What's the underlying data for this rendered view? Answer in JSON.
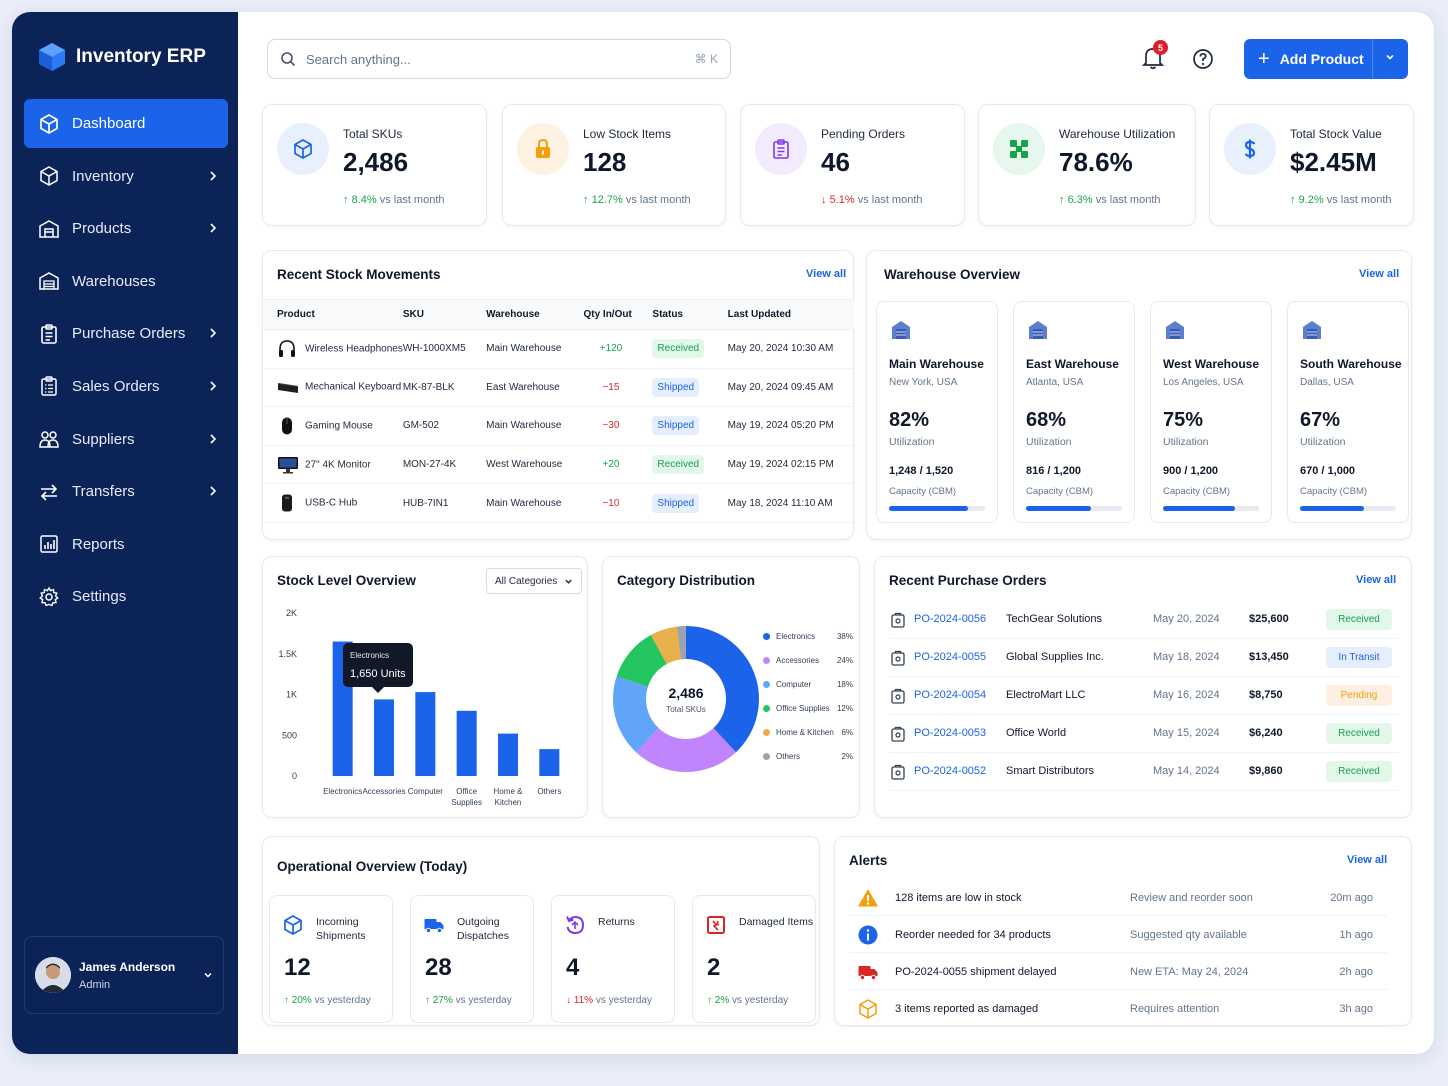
{
  "app": {
    "title": "Inventory ERP"
  },
  "sidebar": {
    "items": [
      {
        "label": "Dashboard",
        "icon": "cube-icon",
        "active": true,
        "chevron": false
      },
      {
        "label": "Inventory",
        "icon": "box-icon",
        "chevron": true
      },
      {
        "label": "Products",
        "icon": "store-icon",
        "chevron": true
      },
      {
        "label": "Warehouses",
        "icon": "warehouse-icon",
        "chevron": false
      },
      {
        "label": "Purchase Orders",
        "icon": "clipboard-icon",
        "chevron": true
      },
      {
        "label": "Sales Orders",
        "icon": "clipboard-list-icon",
        "chevron": true
      },
      {
        "label": "Suppliers",
        "icon": "users-icon",
        "chevron": true
      },
      {
        "label": "Transfers",
        "icon": "transfer-icon",
        "chevron": true
      },
      {
        "label": "Reports",
        "icon": "chart-icon",
        "chevron": false
      },
      {
        "label": "Settings",
        "icon": "gear-icon",
        "chevron": false
      }
    ],
    "user": {
      "name": "James Anderson",
      "role": "Admin"
    }
  },
  "header": {
    "search_placeholder": "Search anything...",
    "shortcut": "⌘  K",
    "notifications": "5",
    "add_label": "Add Product"
  },
  "stats": [
    {
      "label": "Total SKUs",
      "value": "2,486",
      "dir": "up",
      "change": "8.4%",
      "suffix": "vs last month",
      "icon": "cube-icon",
      "bg": "#e8f0fe",
      "color": "#1b63e8"
    },
    {
      "label": "Low Stock Items",
      "value": "128",
      "dir": "up",
      "change": "12.7%",
      "suffix": "vs last month",
      "icon": "lock-icon",
      "bg": "#fdf1e2",
      "color": "#f59e0b"
    },
    {
      "label": "Pending Orders",
      "value": "46",
      "dir": "down",
      "change": "5.1%",
      "suffix": "vs last month",
      "icon": "clipboard-icon",
      "bg": "#f1ebfd",
      "color": "#7c3aed"
    },
    {
      "label": "Warehouse Utilization",
      "value": "78.6%",
      "dir": "up",
      "change": "6.3%",
      "suffix": "vs last month",
      "icon": "grid-icon",
      "bg": "#e6f7ee",
      "color": "#16a34a"
    },
    {
      "label": "Total Stock Value",
      "value": "$2.45M",
      "dir": "up",
      "change": "9.2%",
      "suffix": "vs last month",
      "icon": "dollar-icon",
      "bg": "#e8f0fe",
      "color": "#1b63e8"
    }
  ],
  "movements": {
    "title": "Recent Stock Movements",
    "view_all": "View all",
    "columns": [
      "Product",
      "SKU",
      "Warehouse",
      "Qty In/Out",
      "Status",
      "Last Updated"
    ],
    "rows": [
      {
        "product": "Wireless Headphones",
        "sku": "WH-1000XM5",
        "warehouse": "Main Warehouse",
        "qty": "+120",
        "status": "Received",
        "updated": "May 20, 2024 10:30 AM",
        "icon": "headphones-icon"
      },
      {
        "product": "Mechanical Keyboard",
        "sku": "MK-87-BLK",
        "warehouse": "East Warehouse",
        "qty": "−15",
        "status": "Shipped",
        "updated": "May 20, 2024 09:45 AM",
        "icon": "keyboard-icon"
      },
      {
        "product": "Gaming Mouse",
        "sku": "GM-502",
        "warehouse": "Main Warehouse",
        "qty": "−30",
        "status": "Shipped",
        "updated": "May 19, 2024 05:20 PM",
        "icon": "mouse-icon"
      },
      {
        "product": "27\" 4K Monitor",
        "sku": "MON-27-4K",
        "warehouse": "West Warehouse",
        "qty": "+20",
        "status": "Received",
        "updated": "May 19, 2024 02:15 PM",
        "icon": "monitor-icon"
      },
      {
        "product": "USB-C Hub",
        "sku": "HUB-7IN1",
        "warehouse": "Main Warehouse",
        "qty": "−10",
        "status": "Shipped",
        "updated": "May 18, 2024 11:10 AM",
        "icon": "hub-icon"
      }
    ]
  },
  "warehouses": {
    "title": "Warehouse Overview",
    "view_all": "View all",
    "util_label": "Utilization",
    "cap_label": "Capacity (CBM)",
    "items": [
      {
        "name": "Main Warehouse",
        "location": "New York, USA",
        "pct": "82%",
        "fill": 0.82,
        "capacity": "1,248 / 1,520"
      },
      {
        "name": "East Warehouse",
        "location": "Atlanta, USA",
        "pct": "68%",
        "fill": 0.68,
        "capacity": "816 / 1,200"
      },
      {
        "name": "West Warehouse",
        "location": "Los Angeles, USA",
        "pct": "75%",
        "fill": 0.75,
        "capacity": "900 / 1,200"
      },
      {
        "name": "South Warehouse",
        "location": "Dallas, USA",
        "pct": "67%",
        "fill": 0.67,
        "capacity": "670 / 1,000"
      }
    ]
  },
  "stock_level": {
    "title": "Stock Level Overview",
    "filter": "All Categories",
    "tooltip_cat": "Electronics",
    "tooltip_val": "1,650 Units"
  },
  "category": {
    "title": "Category Distribution",
    "center_value": "2,486",
    "center_label": "Total SKUs"
  },
  "chart_data": [
    {
      "type": "bar",
      "title": "Stock Level Overview",
      "categories": [
        "Electronics",
        "Accessories",
        "Computer",
        "Office Supplies",
        "Home & Kitchen",
        "Others"
      ],
      "values": [
        1650,
        940,
        1030,
        800,
        520,
        330
      ],
      "ylim": [
        0,
        2000
      ],
      "yticks": [
        "0",
        "500",
        "1K",
        "1.5K",
        "2K"
      ],
      "color": "#1b63e8"
    },
    {
      "type": "pie",
      "title": "Category Distribution",
      "labels": [
        "Electronics",
        "Accessories",
        "Computer",
        "Office Supplies",
        "Home & Kitchen",
        "Others"
      ],
      "values": [
        38,
        24,
        18,
        12,
        6,
        2
      ],
      "display": [
        "38%",
        "24%",
        "18%",
        "12%",
        "6%",
        "2%"
      ],
      "colors": [
        "#1b63e8",
        "#c084fc",
        "#60a5fa",
        "#22c55e",
        "#e8b04a",
        "#9ca3af"
      ]
    }
  ],
  "purchase_orders": {
    "title": "Recent Purchase Orders",
    "view_all": "View all",
    "rows": [
      {
        "po": "PO-2024-0056",
        "supplier": "TechGear Solutions",
        "date": "May 20, 2024",
        "amount": "$25,600",
        "status": "Received",
        "kind": "rec"
      },
      {
        "po": "PO-2024-0055",
        "supplier": "Global Supplies Inc.",
        "date": "May 18, 2024",
        "amount": "$13,450",
        "status": "In Transit",
        "kind": "tr"
      },
      {
        "po": "PO-2024-0054",
        "supplier": "ElectroMart LLC",
        "date": "May 16, 2024",
        "amount": "$8,750",
        "status": "Pending",
        "kind": "pen"
      },
      {
        "po": "PO-2024-0053",
        "supplier": "Office World",
        "date": "May 15, 2024",
        "amount": "$6,240",
        "status": "Received",
        "kind": "rec"
      },
      {
        "po": "PO-2024-0052",
        "supplier": "Smart Distributors",
        "date": "May 14, 2024",
        "amount": "$9,860",
        "status": "Received",
        "kind": "rec"
      }
    ]
  },
  "operational": {
    "title": "Operational Overview (Today)",
    "items": [
      {
        "label": "Incoming Shipments",
        "value": "12",
        "dir": "up",
        "change": "20%",
        "suffix": "vs yesterday",
        "icon": "cube-icon",
        "color": "#1b63e8"
      },
      {
        "label": "Outgoing Dispatches",
        "value": "28",
        "dir": "up",
        "change": "27%",
        "suffix": "vs yesterday",
        "icon": "truck-icon",
        "color": "#1b63e8"
      },
      {
        "label": "Returns",
        "value": "4",
        "dir": "down",
        "change": "11%",
        "suffix": "vs yesterday",
        "icon": "return-icon",
        "color": "#7c3aed"
      },
      {
        "label": "Damaged Items",
        "value": "2",
        "dir": "up",
        "change": "2%",
        "suffix": "vs yesterday",
        "icon": "damaged-icon",
        "color": "#dc2626"
      }
    ]
  },
  "alerts": {
    "title": "Alerts",
    "view_all": "View all",
    "rows": [
      {
        "text": "128 items are low in stock",
        "detail": "Review and reorder soon",
        "time": "20m ago",
        "icon": "warning-icon",
        "color": "#f59e0b"
      },
      {
        "text": "Reorder needed for 34 products",
        "detail": "Suggested qty available",
        "time": "1h ago",
        "icon": "info-icon",
        "color": "#1b63e8"
      },
      {
        "text": "PO-2024-0055 shipment delayed",
        "detail": "New ETA: May 24, 2024",
        "time": "2h ago",
        "icon": "truck-icon",
        "color": "#dc2626"
      },
      {
        "text": "3 items reported as damaged",
        "detail": "Requires attention",
        "time": "3h ago",
        "icon": "box-icon",
        "color": "#f59e0b"
      }
    ]
  }
}
